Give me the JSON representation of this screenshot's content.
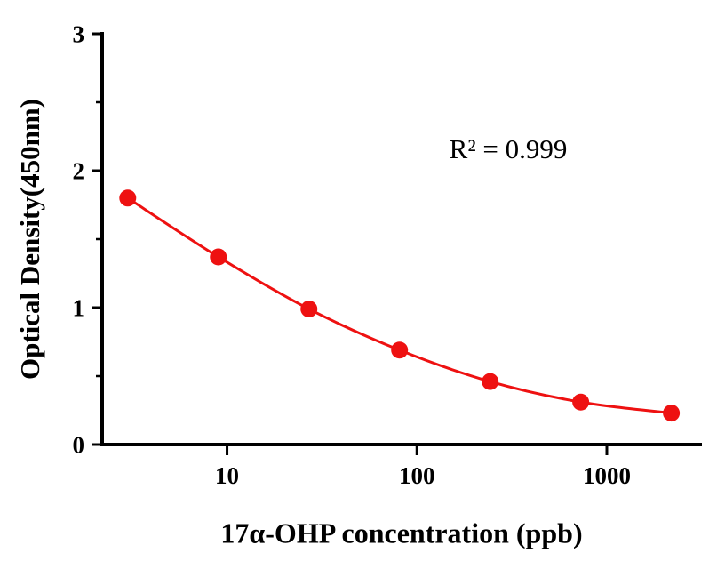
{
  "chart_data": {
    "type": "scatter",
    "title": "",
    "xlabel": "17α-OHP concentration (ppb)",
    "ylabel": "Optical Density(450nm)",
    "annotation": "R² = 0.999",
    "x": [
      3,
      9,
      27,
      81,
      243,
      729,
      2187
    ],
    "y": [
      1.8,
      1.37,
      0.99,
      0.69,
      0.46,
      0.31,
      0.23
    ],
    "xscale": "log",
    "xlim": [
      2.2,
      3100
    ],
    "ylim": [
      0,
      3
    ],
    "x_ticks": [
      10,
      100,
      1000
    ],
    "x_tick_labels": [
      "10",
      "100",
      "1000"
    ],
    "y_ticks": [
      0,
      1,
      2,
      3
    ],
    "y_tick_labels": [
      "0",
      "1",
      "2",
      "3"
    ],
    "y_minor_ticks": [
      0.5,
      1.5,
      2.5
    ],
    "grid": false,
    "legend": null,
    "marker_color": "#ee1111",
    "line_color": "#ee1111",
    "axis_color": "#000000"
  }
}
